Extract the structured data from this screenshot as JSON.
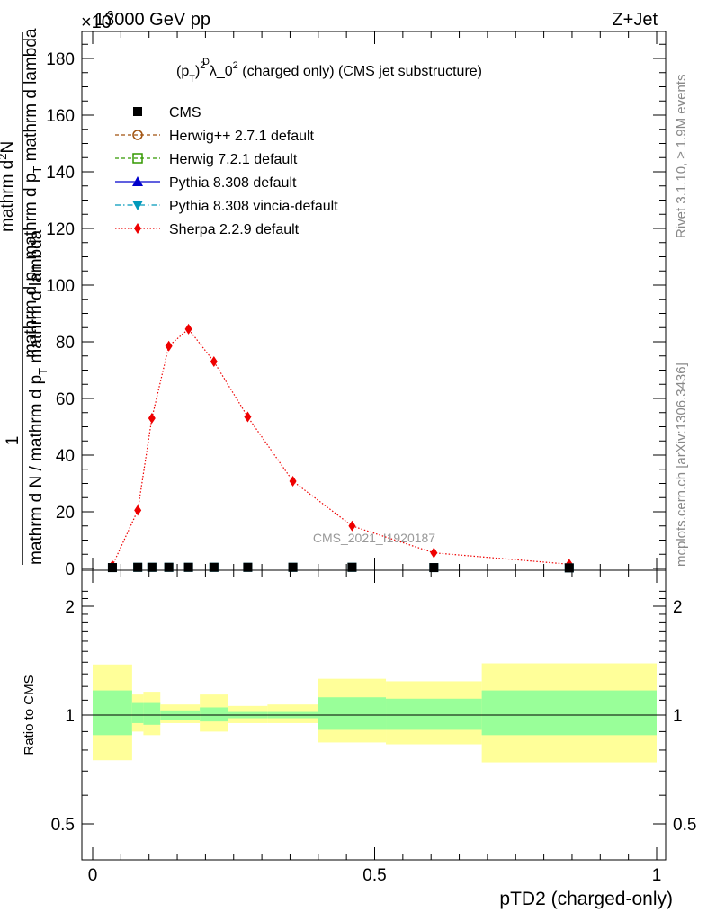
{
  "header": {
    "left": "13000 GeV pp",
    "right": "Z+Jet",
    "exponent_label": "×10",
    "exponent_power": "3"
  },
  "side_labels": {
    "rivet": "Rivet 3.1.10, ≥ 1.9M events",
    "mcplots": "mcplots.cern.ch [arXiv:1306.3436]"
  },
  "main_title": {
    "prefix": "(p",
    "sup_D": "D",
    "sub_T": "T",
    "close_sq": ")",
    "sq": "2",
    "lambda_part": " λ_0",
    "suffix": " (charged only) (CMS jet substructure)"
  },
  "watermark": "CMS_2021_I1920187",
  "ylabel": {
    "numerator": "1",
    "denominator": "mathrm d N / mathrm d p",
    "sub_T": "T",
    "rest": " mathrm d lambda",
    "top_part1": "mathrm d",
    "top_sup": "2",
    "top_part2": "N",
    "top_line2a": "mathrm d p",
    "top_line2b": "T",
    "top_line2c": " mathrm d p",
    "top_line2d": "T",
    "top_line2e": " mathrm d lambda"
  },
  "ratio_ylabel": "Ratio to CMS",
  "xlabel": "pTD2 (charged-only)",
  "chart_data": {
    "type": "line",
    "x_ticks": [
      "0",
      "0.5",
      "1"
    ],
    "y_ticks_main": [
      "0",
      "20",
      "40",
      "60",
      "80",
      "100",
      "120",
      "140",
      "160",
      "180"
    ],
    "y_ticks_ratio": [
      "0.5",
      "1",
      "2"
    ],
    "xlim": [
      0,
      1
    ],
    "ylim_main": [
      0,
      190
    ],
    "ylim_ratio": [
      0.4,
      2.3
    ],
    "y_multiplier": 1000,
    "legend_position": "top-left",
    "legend": [
      {
        "name": "CMS",
        "color": "#000000",
        "marker": "filled-square",
        "line": "none"
      },
      {
        "name": "Herwig++ 2.7.1 default",
        "color": "#a0520e",
        "marker": "open-circle",
        "line": "dashed"
      },
      {
        "name": "Herwig 7.2.1 default",
        "color": "#339900",
        "marker": "open-square",
        "line": "dashed"
      },
      {
        "name": "Pythia 8.308 default",
        "color": "#0000cc",
        "marker": "filled-triangle-up",
        "line": "solid"
      },
      {
        "name": "Pythia 8.308 vincia-default",
        "color": "#0099bb",
        "marker": "filled-triangle-down",
        "line": "dashdot"
      },
      {
        "name": "Sherpa 2.2.9 default",
        "color": "#ee0000",
        "marker": "filled-diamond",
        "line": "dotted"
      }
    ],
    "series": [
      {
        "name": "Sherpa 2.2.9 default",
        "color": "#ee0000",
        "x": [
          0.035,
          0.08,
          0.105,
          0.135,
          0.17,
          0.215,
          0.275,
          0.355,
          0.46,
          0.605,
          0.845
        ],
        "y": [
          1.0,
          20.5,
          53.0,
          78.5,
          84.5,
          73.0,
          53.5,
          30.8,
          15.0,
          5.5,
          1.5
        ]
      },
      {
        "name": "CMS",
        "color": "#000000",
        "x": [
          0.035,
          0.08,
          0.105,
          0.135,
          0.17,
          0.215,
          0.275,
          0.355,
          0.46,
          0.605,
          0.845
        ],
        "y": [
          0.3,
          0.4,
          0.4,
          0.4,
          0.4,
          0.4,
          0.4,
          0.4,
          0.4,
          0.3,
          0.2
        ]
      }
    ],
    "ratio_bands": [
      {
        "x0": 0.0,
        "x1": 0.07,
        "inner": [
          0.88,
          1.17
        ],
        "outer": [
          0.75,
          1.38
        ]
      },
      {
        "x0": 0.07,
        "x1": 0.09,
        "inner": [
          0.95,
          1.08
        ],
        "outer": [
          0.9,
          1.14
        ]
      },
      {
        "x0": 0.09,
        "x1": 0.12,
        "inner": [
          0.94,
          1.08
        ],
        "outer": [
          0.88,
          1.16
        ]
      },
      {
        "x0": 0.12,
        "x1": 0.19,
        "inner": [
          0.97,
          1.03
        ],
        "outer": [
          0.95,
          1.07
        ]
      },
      {
        "x0": 0.19,
        "x1": 0.24,
        "inner": [
          0.96,
          1.05
        ],
        "outer": [
          0.9,
          1.14
        ]
      },
      {
        "x0": 0.24,
        "x1": 0.31,
        "inner": [
          0.98,
          1.02
        ],
        "outer": [
          0.95,
          1.06
        ]
      },
      {
        "x0": 0.31,
        "x1": 0.4,
        "inner": [
          0.98,
          1.02
        ],
        "outer": [
          0.95,
          1.07
        ]
      },
      {
        "x0": 0.4,
        "x1": 0.52,
        "inner": [
          0.91,
          1.12
        ],
        "outer": [
          0.84,
          1.26
        ]
      },
      {
        "x0": 0.52,
        "x1": 0.69,
        "inner": [
          0.91,
          1.11
        ],
        "outer": [
          0.83,
          1.24
        ]
      },
      {
        "x0": 0.69,
        "x1": 1.0,
        "inner": [
          0.88,
          1.17
        ],
        "outer": [
          0.74,
          1.39
        ]
      }
    ]
  }
}
